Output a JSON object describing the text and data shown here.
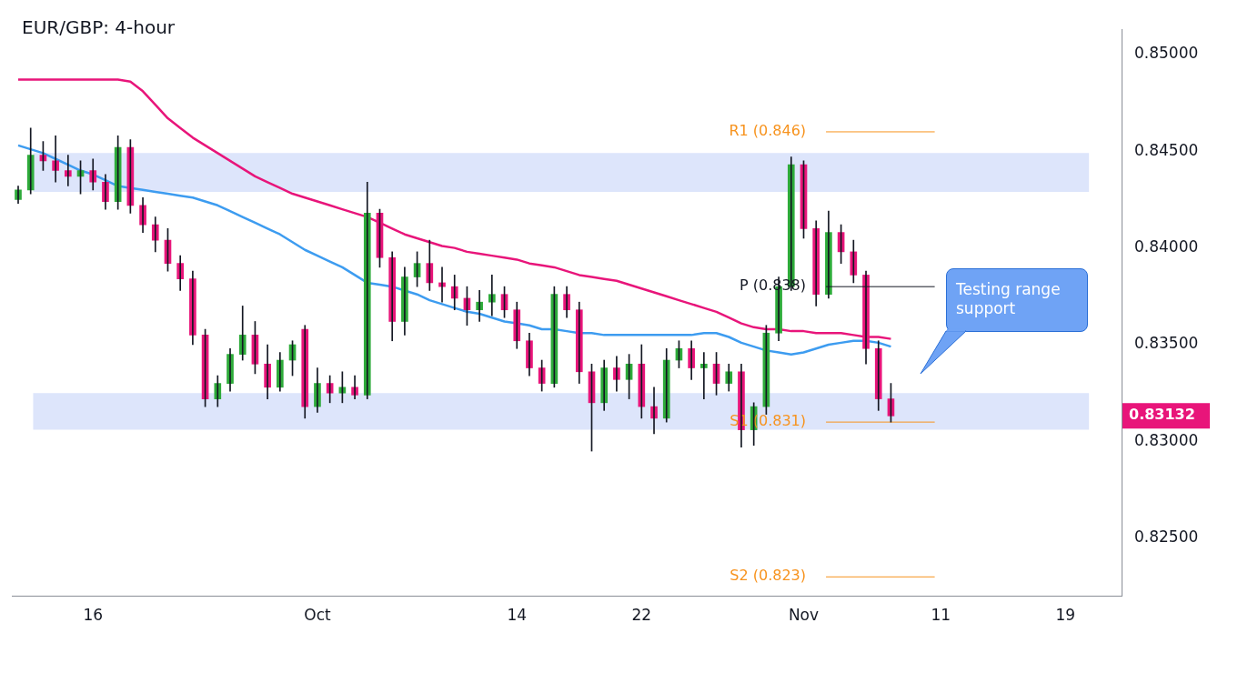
{
  "chart_data": {
    "type": "candlestick",
    "title": "EUR/GBP: 4-hour",
    "categories": [
      null,
      null,
      null,
      null,
      null,
      null,
      "16",
      null,
      null,
      null,
      null,
      null,
      null,
      null,
      null,
      null,
      null,
      null,
      null,
      null,
      null,
      null,
      null,
      null,
      "Oct",
      null,
      null,
      null,
      null,
      null,
      null,
      null,
      null,
      null,
      null,
      null,
      null,
      null,
      null,
      null,
      "14",
      null,
      null,
      null,
      null,
      null,
      null,
      null,
      null,
      null,
      "22",
      null,
      null,
      null,
      null,
      null,
      null,
      null,
      null,
      null,
      null,
      null,
      null,
      "Nov",
      null,
      null,
      null,
      null,
      null,
      null,
      null,
      null,
      null,
      null,
      "11",
      null,
      null,
      null,
      null,
      null,
      null,
      null,
      null,
      null,
      "19",
      null,
      null,
      null,
      null
    ],
    "ohlc": [
      [
        0.8425,
        0.8432,
        0.8423,
        0.843
      ],
      [
        0.843,
        0.8462,
        0.8428,
        0.8448
      ],
      [
        0.8448,
        0.8455,
        0.844,
        0.8445
      ],
      [
        0.8445,
        0.8458,
        0.8434,
        0.844
      ],
      [
        0.844,
        0.8448,
        0.8432,
        0.8437
      ],
      [
        0.8437,
        0.8445,
        0.8428,
        0.844
      ],
      [
        0.844,
        0.8446,
        0.843,
        0.8434
      ],
      [
        0.8434,
        0.8438,
        0.842,
        0.8424
      ],
      [
        0.8424,
        0.8458,
        0.842,
        0.8452
      ],
      [
        0.8452,
        0.8456,
        0.8418,
        0.8422
      ],
      [
        0.8422,
        0.8426,
        0.8408,
        0.8412
      ],
      [
        0.8412,
        0.8416,
        0.8398,
        0.8404
      ],
      [
        0.8404,
        0.841,
        0.8388,
        0.8392
      ],
      [
        0.8392,
        0.8396,
        0.8378,
        0.8384
      ],
      [
        0.8384,
        0.8388,
        0.835,
        0.8355
      ],
      [
        0.8355,
        0.8358,
        0.8318,
        0.8322
      ],
      [
        0.8322,
        0.8334,
        0.8318,
        0.833
      ],
      [
        0.833,
        0.8348,
        0.8326,
        0.8345
      ],
      [
        0.8345,
        0.837,
        0.8342,
        0.8355
      ],
      [
        0.8355,
        0.8362,
        0.8335,
        0.834
      ],
      [
        0.834,
        0.835,
        0.8322,
        0.8328
      ],
      [
        0.8328,
        0.8346,
        0.8326,
        0.8342
      ],
      [
        0.8342,
        0.8352,
        0.8334,
        0.835
      ],
      [
        0.8358,
        0.836,
        0.8312,
        0.8318
      ],
      [
        0.8318,
        0.8338,
        0.8315,
        0.833
      ],
      [
        0.833,
        0.8334,
        0.832,
        0.8325
      ],
      [
        0.8325,
        0.8336,
        0.832,
        0.8328
      ],
      [
        0.8328,
        0.8334,
        0.8322,
        0.8324
      ],
      [
        0.8324,
        0.8434,
        0.8322,
        0.8418
      ],
      [
        0.8418,
        0.842,
        0.839,
        0.8395
      ],
      [
        0.8395,
        0.8398,
        0.8352,
        0.8362
      ],
      [
        0.8362,
        0.839,
        0.8355,
        0.8385
      ],
      [
        0.8385,
        0.8398,
        0.838,
        0.8392
      ],
      [
        0.8392,
        0.8404,
        0.8378,
        0.8382
      ],
      [
        0.8382,
        0.839,
        0.8372,
        0.838
      ],
      [
        0.838,
        0.8386,
        0.8368,
        0.8374
      ],
      [
        0.8374,
        0.838,
        0.836,
        0.8368
      ],
      [
        0.8368,
        0.8378,
        0.8362,
        0.8372
      ],
      [
        0.8372,
        0.8386,
        0.8365,
        0.8376
      ],
      [
        0.8376,
        0.838,
        0.8364,
        0.8368
      ],
      [
        0.8368,
        0.8372,
        0.8348,
        0.8352
      ],
      [
        0.8352,
        0.8356,
        0.8334,
        0.8338
      ],
      [
        0.8338,
        0.8342,
        0.8326,
        0.833
      ],
      [
        0.833,
        0.838,
        0.8328,
        0.8376
      ],
      [
        0.8376,
        0.838,
        0.8364,
        0.8368
      ],
      [
        0.8368,
        0.8372,
        0.833,
        0.8336
      ],
      [
        0.8336,
        0.834,
        0.8295,
        0.832
      ],
      [
        0.832,
        0.8342,
        0.8316,
        0.8338
      ],
      [
        0.8338,
        0.8344,
        0.8326,
        0.8332
      ],
      [
        0.8332,
        0.8345,
        0.8322,
        0.834
      ],
      [
        0.834,
        0.835,
        0.8312,
        0.8318
      ],
      [
        0.8318,
        0.8328,
        0.8304,
        0.8312
      ],
      [
        0.8312,
        0.8348,
        0.831,
        0.8342
      ],
      [
        0.8342,
        0.8352,
        0.8338,
        0.8348
      ],
      [
        0.8348,
        0.8352,
        0.8332,
        0.8338
      ],
      [
        0.8338,
        0.8346,
        0.8322,
        0.834
      ],
      [
        0.834,
        0.8346,
        0.8324,
        0.833
      ],
      [
        0.833,
        0.834,
        0.8326,
        0.8336
      ],
      [
        0.8336,
        0.834,
        0.8297,
        0.8306
      ],
      [
        0.8306,
        0.832,
        0.8298,
        0.8318
      ],
      [
        0.8318,
        0.836,
        0.8314,
        0.8356
      ],
      [
        0.8356,
        0.8385,
        0.8352,
        0.838
      ],
      [
        0.838,
        0.8447,
        0.8378,
        0.8443
      ],
      [
        0.8443,
        0.8445,
        0.8405,
        0.841
      ],
      [
        0.841,
        0.8414,
        0.837,
        0.8376
      ],
      [
        0.8376,
        0.8419,
        0.8374,
        0.8408
      ],
      [
        0.8408,
        0.8412,
        0.8392,
        0.8398
      ],
      [
        0.8398,
        0.8404,
        0.8382,
        0.8386
      ],
      [
        0.8386,
        0.8388,
        0.834,
        0.8348
      ],
      [
        0.8348,
        0.8352,
        0.8316,
        0.8322
      ],
      [
        0.8322,
        0.833,
        0.831,
        0.83132
      ],
      null,
      null,
      null,
      null,
      null,
      null,
      null,
      null,
      null,
      null,
      null,
      null,
      null,
      null,
      null,
      null,
      null,
      null
    ],
    "series": [
      {
        "type": "line",
        "color": "#e8157a",
        "values": [
          0.8487,
          0.8487,
          0.8487,
          0.8487,
          0.8487,
          0.8487,
          0.8487,
          0.8487,
          0.8487,
          0.8486,
          0.8481,
          0.8474,
          0.8467,
          0.8462,
          0.8457,
          0.8453,
          0.8449,
          0.8445,
          0.8441,
          0.8437,
          0.8434,
          0.8431,
          0.8428,
          0.8426,
          0.8424,
          0.8422,
          0.842,
          0.8418,
          0.8416,
          0.8413,
          0.841,
          0.8407,
          0.8405,
          0.8403,
          0.8401,
          0.84,
          0.8398,
          0.8397,
          0.8396,
          0.8395,
          0.8394,
          0.8392,
          0.8391,
          0.839,
          0.8388,
          0.8386,
          0.8385,
          0.8384,
          0.8383,
          0.8381,
          0.8379,
          0.8377,
          0.8375,
          0.8373,
          0.8371,
          0.8369,
          0.8367,
          0.8364,
          0.8361,
          0.8359,
          0.8358,
          0.8358,
          0.8357,
          0.8357,
          0.8356,
          0.8356,
          0.8356,
          0.8355,
          0.8354,
          0.8354,
          0.8353,
          null,
          null,
          null,
          null,
          null,
          null,
          null,
          null,
          null,
          null,
          null,
          null,
          null,
          null,
          null,
          null,
          null,
          null
        ]
      },
      {
        "type": "line",
        "color": "#3d9cf0",
        "values": [
          0.8453,
          0.8451,
          0.8449,
          0.8446,
          0.8443,
          0.844,
          0.8438,
          0.8435,
          0.8432,
          0.8431,
          0.843,
          0.8429,
          0.8428,
          0.8427,
          0.8426,
          0.8424,
          0.8422,
          0.8419,
          0.8416,
          0.8413,
          0.841,
          0.8407,
          0.8403,
          0.8399,
          0.8396,
          0.8393,
          0.839,
          0.8386,
          0.8382,
          0.8381,
          0.838,
          0.8378,
          0.8376,
          0.8373,
          0.8371,
          0.8369,
          0.8367,
          0.8366,
          0.8364,
          0.8362,
          0.8361,
          0.836,
          0.8358,
          0.8358,
          0.8357,
          0.8356,
          0.8356,
          0.8355,
          0.8355,
          0.8355,
          0.8355,
          0.8355,
          0.8355,
          0.8355,
          0.8355,
          0.8356,
          0.8356,
          0.8354,
          0.8351,
          0.8349,
          0.8347,
          0.8346,
          0.8345,
          0.8346,
          0.8348,
          0.835,
          0.8351,
          0.8352,
          0.8352,
          0.8351,
          0.8349,
          null,
          null,
          null,
          null,
          null,
          null,
          null,
          null,
          null,
          null,
          null,
          null,
          null,
          null,
          null,
          null,
          null,
          null
        ]
      }
    ],
    "ylim": [
      0.822,
      0.8513
    ],
    "yticks": [
      {
        "value": 0.825,
        "label": "0.82500"
      },
      {
        "value": 0.83,
        "label": "0.83000"
      },
      {
        "value": 0.835,
        "label": "0.83500"
      },
      {
        "value": 0.84,
        "label": "0.84000"
      },
      {
        "value": 0.845,
        "label": "0.84500"
      },
      {
        "value": 0.85,
        "label": "0.85000"
      }
    ],
    "bands": [
      {
        "axis": "y",
        "from": 0.8429,
        "to": 0.8449,
        "color": "#dde5fb"
      },
      {
        "axis": "y",
        "from": 0.8306,
        "to": 0.8325,
        "color": "#dde5fb"
      }
    ],
    "ref_lines": [
      {
        "axis": "y",
        "value": 0.846,
        "label": "R1 (0.846)",
        "color": "#f7931e"
      },
      {
        "axis": "y",
        "value": 0.838,
        "label": "P (0.838)",
        "color": "#131722"
      },
      {
        "axis": "y",
        "value": 0.831,
        "label": "S1 (0.831)",
        "color": "#f7931e"
      },
      {
        "axis": "y",
        "value": 0.823,
        "label": "S2 (0.823)",
        "color": "#f7931e"
      }
    ],
    "annotations": [
      "Testing range support",
      "0.83132"
    ]
  }
}
